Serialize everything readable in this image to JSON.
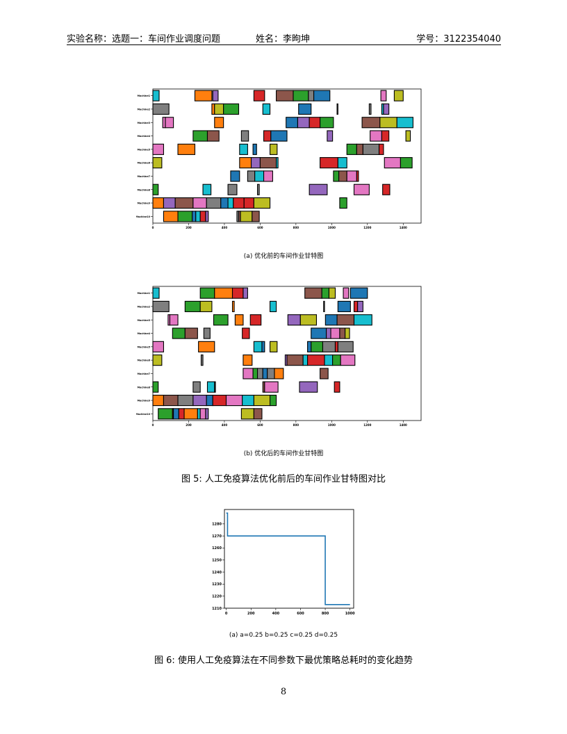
{
  "header": {
    "title": "实验名称：选题一：车间作业调度问题",
    "author": "姓名：李昫坤",
    "student_id": "学号：3122354040"
  },
  "colors": [
    "#1f77b4",
    "#ff7f0e",
    "#2ca02c",
    "#d62728",
    "#9467bd",
    "#8c564b",
    "#e377c2",
    "#7f7f7f",
    "#bcbd22",
    "#17becf"
  ],
  "captions": {
    "sub_a": "(a) 优化前的车间作业甘特图",
    "sub_b": "(b) 优化后的车间作业甘特图",
    "fig5": "图 5: 人工免疫算法优化前后的车间作业甘特图对比",
    "sub_conv": "(a) a=0.25 b=0.25 c=0.25 d=0.25",
    "fig6": "图 6: 使用人工免疫算法在不同参数下最优策略总耗时的变化趋势"
  },
  "page_number": "8",
  "chart_data": [
    {
      "type": "gantt",
      "title": "",
      "xlabel": "",
      "ylabel": "",
      "xlim": [
        0,
        1500
      ],
      "xticks": [
        0,
        200,
        400,
        600,
        800,
        1000,
        1200,
        1400
      ],
      "machines": [
        "Machine1",
        "Machine2",
        "Machine3",
        "Machine4",
        "Machine5",
        "Machine6",
        "Machine7",
        "Machine8",
        "Machine9",
        "Machine10"
      ],
      "tasks": [
        [
          [
            0,
            35,
            9
          ],
          [
            235,
            330,
            1
          ],
          [
            335,
            365,
            4
          ],
          [
            565,
            625,
            3
          ],
          [
            690,
            785,
            5
          ],
          [
            785,
            870,
            2
          ],
          [
            870,
            900,
            7
          ],
          [
            900,
            990,
            0
          ],
          [
            1275,
            1305,
            6
          ],
          [
            1350,
            1400,
            8
          ]
        ],
        [
          [
            0,
            90,
            7
          ],
          [
            330,
            345,
            1
          ],
          [
            345,
            395,
            8
          ],
          [
            395,
            480,
            2
          ],
          [
            615,
            655,
            9
          ],
          [
            815,
            885,
            0
          ],
          [
            1030,
            1035,
            7
          ],
          [
            1210,
            1220,
            7
          ],
          [
            1280,
            1290,
            9
          ],
          [
            1290,
            1320,
            4
          ]
        ],
        [
          [
            55,
            70,
            6
          ],
          [
            70,
            115,
            6
          ],
          [
            345,
            395,
            1
          ],
          [
            745,
            810,
            0
          ],
          [
            810,
            875,
            4
          ],
          [
            875,
            935,
            3
          ],
          [
            935,
            1010,
            2
          ],
          [
            1170,
            1270,
            5
          ],
          [
            1270,
            1365,
            8
          ],
          [
            1365,
            1455,
            9
          ]
        ],
        [
          [
            225,
            305,
            2
          ],
          [
            305,
            370,
            5
          ],
          [
            495,
            535,
            7
          ],
          [
            620,
            660,
            3
          ],
          [
            660,
            750,
            0
          ],
          [
            975,
            1005,
            4
          ],
          [
            1215,
            1280,
            6
          ],
          [
            1280,
            1320,
            3
          ],
          [
            1415,
            1440,
            8
          ]
        ],
        [
          [
            0,
            60,
            6
          ],
          [
            140,
            235,
            1
          ],
          [
            485,
            530,
            9
          ],
          [
            560,
            580,
            0
          ],
          [
            655,
            695,
            8
          ],
          [
            1085,
            1140,
            2
          ],
          [
            1140,
            1175,
            5
          ],
          [
            1175,
            1265,
            7
          ],
          [
            1265,
            1290,
            3
          ]
        ],
        [
          [
            0,
            50,
            8
          ],
          [
            485,
            550,
            1
          ],
          [
            550,
            600,
            4
          ],
          [
            600,
            690,
            5
          ],
          [
            690,
            700,
            9
          ],
          [
            935,
            1035,
            3
          ],
          [
            1035,
            1085,
            9
          ],
          [
            1295,
            1385,
            6
          ],
          [
            1385,
            1450,
            2
          ]
        ],
        [
          [
            435,
            485,
            0
          ],
          [
            530,
            570,
            7
          ],
          [
            570,
            620,
            9
          ],
          [
            620,
            670,
            6
          ],
          [
            1010,
            1040,
            2
          ],
          [
            1040,
            1085,
            5
          ],
          [
            1085,
            1140,
            6
          ],
          [
            1140,
            1150,
            3
          ]
        ],
        [
          [
            0,
            30,
            2
          ],
          [
            280,
            325,
            9
          ],
          [
            420,
            470,
            7
          ],
          [
            585,
            595,
            7
          ],
          [
            875,
            975,
            4
          ],
          [
            1125,
            1210,
            6
          ],
          [
            1285,
            1325,
            3
          ]
        ],
        [
          [
            0,
            60,
            1
          ],
          [
            60,
            125,
            4
          ],
          [
            125,
            225,
            5
          ],
          [
            225,
            300,
            6
          ],
          [
            300,
            380,
            7
          ],
          [
            380,
            420,
            0
          ],
          [
            420,
            450,
            9
          ],
          [
            450,
            510,
            3
          ],
          [
            510,
            565,
            3
          ],
          [
            565,
            655,
            8
          ],
          [
            1045,
            1085,
            2
          ]
        ],
        [
          [
            60,
            140,
            1
          ],
          [
            140,
            220,
            2
          ],
          [
            220,
            240,
            0
          ],
          [
            240,
            265,
            9
          ],
          [
            265,
            295,
            3
          ],
          [
            295,
            310,
            4
          ],
          [
            470,
            480,
            7
          ],
          [
            480,
            490,
            5
          ],
          [
            490,
            555,
            8
          ],
          [
            555,
            595,
            5
          ]
        ]
      ]
    },
    {
      "type": "gantt",
      "title": "",
      "xlabel": "",
      "ylabel": "",
      "xlim": [
        0,
        1500
      ],
      "xticks": [
        0,
        200,
        400,
        600,
        800,
        1000,
        1200,
        1400
      ],
      "machines": [
        "Machine1",
        "Machine2",
        "Machine3",
        "Machine4",
        "Machine5",
        "Machine6",
        "Machine7",
        "Machine8",
        "Machine9",
        "Machine10"
      ],
      "tasks": [
        [
          [
            0,
            35,
            9
          ],
          [
            265,
            345,
            2
          ],
          [
            345,
            445,
            1
          ],
          [
            445,
            505,
            3
          ],
          [
            505,
            530,
            4
          ],
          [
            850,
            945,
            5
          ],
          [
            945,
            985,
            2
          ],
          [
            985,
            1020,
            8
          ],
          [
            1065,
            1095,
            6
          ],
          [
            1105,
            1200,
            0
          ]
        ],
        [
          [
            0,
            90,
            7
          ],
          [
            180,
            265,
            2
          ],
          [
            265,
            330,
            8
          ],
          [
            445,
            455,
            1
          ],
          [
            655,
            690,
            9
          ],
          [
            955,
            960,
            7
          ],
          [
            1035,
            1105,
            0
          ],
          [
            1125,
            1145,
            3
          ],
          [
            1145,
            1175,
            4
          ]
        ],
        [
          [
            85,
            95,
            6
          ],
          [
            95,
            140,
            6
          ],
          [
            340,
            420,
            2
          ],
          [
            460,
            505,
            1
          ],
          [
            545,
            605,
            3
          ],
          [
            755,
            825,
            4
          ],
          [
            825,
            915,
            8
          ],
          [
            965,
            1030,
            0
          ],
          [
            1030,
            1125,
            5
          ],
          [
            1125,
            1225,
            9
          ]
        ],
        [
          [
            110,
            180,
            2
          ],
          [
            180,
            250,
            5
          ],
          [
            285,
            320,
            7
          ],
          [
            500,
            540,
            3
          ],
          [
            885,
            970,
            0
          ],
          [
            970,
            995,
            4
          ],
          [
            995,
            1045,
            6
          ],
          [
            1045,
            1075,
            5
          ],
          [
            1075,
            1100,
            8
          ]
        ],
        [
          [
            0,
            60,
            6
          ],
          [
            255,
            345,
            1
          ],
          [
            565,
            610,
            9
          ],
          [
            610,
            625,
            0
          ],
          [
            655,
            695,
            8
          ],
          [
            865,
            885,
            0
          ],
          [
            885,
            950,
            2
          ],
          [
            950,
            1020,
            7
          ],
          [
            1020,
            1035,
            3
          ],
          [
            1035,
            1120,
            7
          ]
        ],
        [
          [
            0,
            50,
            8
          ],
          [
            270,
            280,
            7
          ],
          [
            505,
            555,
            1
          ],
          [
            740,
            750,
            4
          ],
          [
            750,
            840,
            5
          ],
          [
            840,
            865,
            9
          ],
          [
            865,
            960,
            3
          ],
          [
            960,
            1005,
            9
          ],
          [
            1005,
            1050,
            2
          ],
          [
            1050,
            1130,
            6
          ]
        ],
        [
          [
            505,
            560,
            6
          ],
          [
            560,
            585,
            2
          ],
          [
            585,
            615,
            7
          ],
          [
            615,
            640,
            0
          ],
          [
            640,
            680,
            7
          ],
          [
            680,
            730,
            1
          ],
          [
            935,
            980,
            5
          ]
        ],
        [
          [
            0,
            30,
            2
          ],
          [
            225,
            265,
            7
          ],
          [
            305,
            345,
            9
          ],
          [
            345,
            350,
            7
          ],
          [
            615,
            625,
            5
          ],
          [
            625,
            700,
            6
          ],
          [
            820,
            920,
            4
          ],
          [
            1015,
            1045,
            3
          ]
        ],
        [
          [
            0,
            60,
            1
          ],
          [
            60,
            140,
            5
          ],
          [
            140,
            225,
            7
          ],
          [
            225,
            300,
            4
          ],
          [
            300,
            335,
            0
          ],
          [
            335,
            410,
            3
          ],
          [
            410,
            500,
            6
          ],
          [
            500,
            565,
            9
          ],
          [
            565,
            655,
            8
          ],
          [
            655,
            690,
            2
          ]
        ],
        [
          [
            30,
            110,
            2
          ],
          [
            110,
            115,
            3
          ],
          [
            115,
            145,
            0
          ],
          [
            145,
            175,
            3
          ],
          [
            175,
            250,
            1
          ],
          [
            250,
            265,
            9
          ],
          [
            265,
            295,
            6
          ],
          [
            295,
            310,
            4
          ],
          [
            495,
            565,
            8
          ],
          [
            565,
            610,
            5
          ]
        ]
      ]
    },
    {
      "type": "line",
      "title": "",
      "xlabel": "",
      "ylabel": "",
      "xlim": [
        -15,
        1030
      ],
      "ylim": [
        1210,
        1292
      ],
      "xticks": [
        0,
        200,
        400,
        600,
        800,
        1000
      ],
      "yticks": [
        1210,
        1220,
        1230,
        1240,
        1250,
        1260,
        1270,
        1280
      ],
      "series": [
        {
          "x": [
            0,
            10,
            10,
            800,
            800,
            1000
          ],
          "y": [
            1289,
            1289,
            1270,
            1270,
            1213,
            1213
          ]
        }
      ]
    }
  ]
}
